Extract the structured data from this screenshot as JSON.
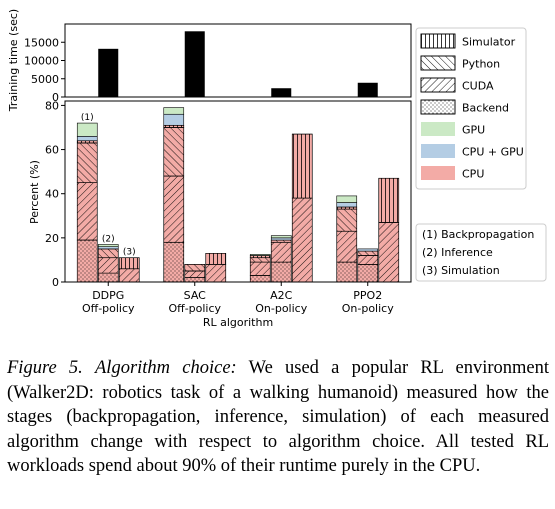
{
  "chart_data": [
    {
      "type": "bar",
      "ylabel": "Training time (sec)",
      "categories": [
        "DDPG",
        "SAC",
        "A2C",
        "PPO2"
      ],
      "values": [
        13200,
        18000,
        2400,
        3900
      ],
      "ylim": [
        0,
        20000
      ],
      "yticks": [
        0,
        5000,
        10000,
        15000
      ],
      "ytick_labels": [
        "0",
        "5000",
        "10000",
        "15000"
      ]
    },
    {
      "type": "bar",
      "stacked": true,
      "xlabel": "RL algorithm",
      "ylabel": "Percent (%)",
      "ylim": [
        0,
        82
      ],
      "yticks": [
        0,
        20,
        40,
        60,
        80
      ],
      "ytick_labels": [
        "0",
        "20",
        "40",
        "60",
        "80"
      ],
      "categories": [
        "DDPG",
        "SAC",
        "A2C",
        "PPO2"
      ],
      "category_sublabels": [
        "Off-policy",
        "Off-policy",
        "On-policy",
        "On-policy"
      ],
      "stage_labels": [
        "(1)",
        "(2)",
        "(3)"
      ],
      "legend_items": [
        {
          "label": "Simulator",
          "hatch": "vertical"
        },
        {
          "label": "Python",
          "hatch": "back"
        },
        {
          "label": "CUDA",
          "hatch": "forward"
        },
        {
          "label": "Backend",
          "hatch": "dots"
        },
        {
          "label": "GPU",
          "color": "#cbe9c5"
        },
        {
          "label": "CPU + GPU",
          "color": "#b4cde4"
        },
        {
          "label": "CPU",
          "color": "#f3aba6"
        }
      ],
      "stage_legend": [
        "(1) Backpropagation",
        "(2) Inference",
        "(3) Simulation"
      ],
      "groups": [
        {
          "category": "DDPG",
          "bars": [
            {
              "stage": "(1)",
              "segments": [
                {
                  "hatch": "dots",
                  "color": "#f3aba6",
                  "value": 19
                },
                {
                  "hatch": "forward",
                  "color": "#f3aba6",
                  "value": 26
                },
                {
                  "hatch": "back",
                  "color": "#f3aba6",
                  "value": 18
                },
                {
                  "hatch": "vertical",
                  "color": "#f3aba6",
                  "value": 1
                },
                {
                  "hatch": "none",
                  "color": "#b4cde4",
                  "value": 2
                },
                {
                  "hatch": "none",
                  "color": "#cbe9c5",
                  "value": 6
                }
              ]
            },
            {
              "stage": "(2)",
              "segments": [
                {
                  "hatch": "dots",
                  "color": "#f3aba6",
                  "value": 4
                },
                {
                  "hatch": "forward",
                  "color": "#f3aba6",
                  "value": 7
                },
                {
                  "hatch": "back",
                  "color": "#f3aba6",
                  "value": 4
                },
                {
                  "hatch": "none",
                  "color": "#b4cde4",
                  "value": 1
                },
                {
                  "hatch": "none",
                  "color": "#cbe9c5",
                  "value": 1
                }
              ]
            },
            {
              "stage": "(3)",
              "segments": [
                {
                  "hatch": "forward",
                  "color": "#f3aba6",
                  "value": 6
                },
                {
                  "hatch": "vertical",
                  "color": "#f3aba6",
                  "value": 5
                }
              ]
            }
          ]
        },
        {
          "category": "SAC",
          "bars": [
            {
              "segments": [
                {
                  "hatch": "dots",
                  "color": "#f3aba6",
                  "value": 18
                },
                {
                  "hatch": "forward",
                  "color": "#f3aba6",
                  "value": 30
                },
                {
                  "hatch": "back",
                  "color": "#f3aba6",
                  "value": 22
                },
                {
                  "hatch": "vertical",
                  "color": "#f3aba6",
                  "value": 1
                },
                {
                  "hatch": "none",
                  "color": "#b4cde4",
                  "value": 5
                },
                {
                  "hatch": "none",
                  "color": "#cbe9c5",
                  "value": 3
                }
              ]
            },
            {
              "segments": [
                {
                  "hatch": "dots",
                  "color": "#f3aba6",
                  "value": 2
                },
                {
                  "hatch": "forward",
                  "color": "#f3aba6",
                  "value": 3
                },
                {
                  "hatch": "back",
                  "color": "#f3aba6",
                  "value": 3
                }
              ]
            },
            {
              "segments": [
                {
                  "hatch": "forward",
                  "color": "#f3aba6",
                  "value": 8
                },
                {
                  "hatch": "vertical",
                  "color": "#f3aba6",
                  "value": 5
                }
              ]
            }
          ]
        },
        {
          "category": "A2C",
          "bars": [
            {
              "segments": [
                {
                  "hatch": "dots",
                  "color": "#f3aba6",
                  "value": 3
                },
                {
                  "hatch": "forward",
                  "color": "#f3aba6",
                  "value": 6
                },
                {
                  "hatch": "back",
                  "color": "#f3aba6",
                  "value": 2
                },
                {
                  "hatch": "vertical",
                  "color": "#f3aba6",
                  "value": 1
                },
                {
                  "hatch": "none",
                  "color": "#cbe9c5",
                  "value": 0.5
                }
              ]
            },
            {
              "segments": [
                {
                  "hatch": "dots",
                  "color": "#f3aba6",
                  "value": 9
                },
                {
                  "hatch": "forward",
                  "color": "#f3aba6",
                  "value": 9
                },
                {
                  "hatch": "back",
                  "color": "#f3aba6",
                  "value": 1
                },
                {
                  "hatch": "none",
                  "color": "#b4cde4",
                  "value": 1
                },
                {
                  "hatch": "none",
                  "color": "#cbe9c5",
                  "value": 1
                }
              ]
            },
            {
              "segments": [
                {
                  "hatch": "forward",
                  "color": "#f3aba6",
                  "value": 38
                },
                {
                  "hatch": "vertical",
                  "color": "#f3aba6",
                  "value": 29
                }
              ]
            }
          ]
        },
        {
          "category": "PPO2",
          "bars": [
            {
              "segments": [
                {
                  "hatch": "dots",
                  "color": "#f3aba6",
                  "value": 9
                },
                {
                  "hatch": "forward",
                  "color": "#f3aba6",
                  "value": 14
                },
                {
                  "hatch": "back",
                  "color": "#f3aba6",
                  "value": 10
                },
                {
                  "hatch": "vertical",
                  "color": "#f3aba6",
                  "value": 1
                },
                {
                  "hatch": "none",
                  "color": "#b4cde4",
                  "value": 2
                },
                {
                  "hatch": "none",
                  "color": "#cbe9c5",
                  "value": 3
                }
              ]
            },
            {
              "segments": [
                {
                  "hatch": "dots",
                  "color": "#f3aba6",
                  "value": 8
                },
                {
                  "hatch": "forward",
                  "color": "#f3aba6",
                  "value": 4
                },
                {
                  "hatch": "back",
                  "color": "#f3aba6",
                  "value": 2
                },
                {
                  "hatch": "none",
                  "color": "#b4cde4",
                  "value": 1
                }
              ]
            },
            {
              "segments": [
                {
                  "hatch": "forward",
                  "color": "#f3aba6",
                  "value": 27
                },
                {
                  "hatch": "vertical",
                  "color": "#f3aba6",
                  "value": 20
                }
              ]
            }
          ]
        }
      ]
    }
  ],
  "caption": {
    "label": "Figure 5.",
    "title": "Algorithm choice:",
    "text": "We used a popular RL environment (Walker2D: robotics task of a walking humanoid) measured how the stages (backpropagation, inference, simulation) of each measured algorithm change with respect to algorithm choice. All tested RL workloads spend about 90% of their runtime purely in the CPU."
  }
}
